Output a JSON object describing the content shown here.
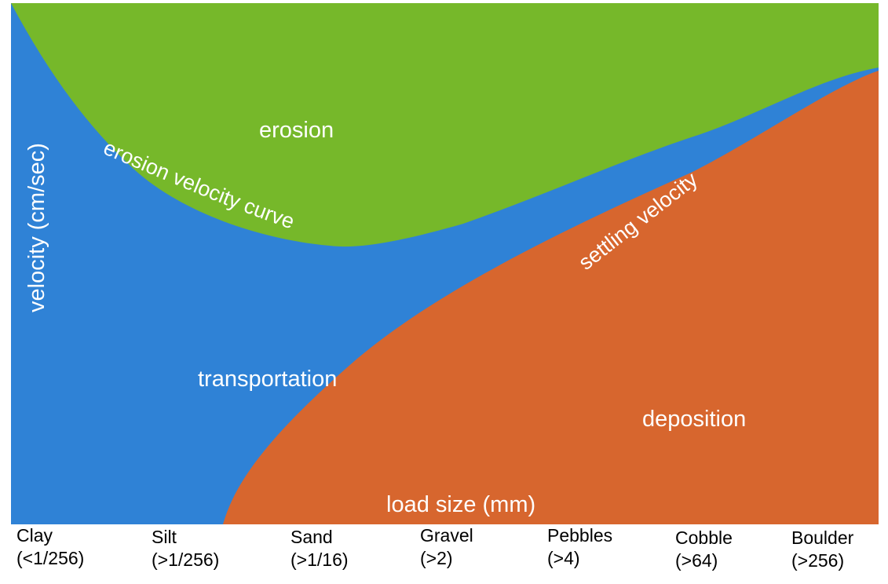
{
  "colors": {
    "erosion": "#76B82A",
    "transportation": "#2F82D6",
    "deposition": "#D7662E",
    "label_text": "#FFFFFF"
  },
  "regions": {
    "erosion": "erosion",
    "transportation": "transportation",
    "deposition": "deposition"
  },
  "curves": {
    "erosion_curve": "erosion velocity  curve",
    "settling_curve": "settling velocity"
  },
  "axes": {
    "y_label": "velocity (cm/sec)",
    "x_label": "load size (mm)"
  },
  "categories": [
    {
      "name": "Clay",
      "range": "(<1/256)"
    },
    {
      "name": "Silt",
      "range": "(>1/256)"
    },
    {
      "name": "Sand",
      "range": "(>1/16)"
    },
    {
      "name": "Gravel",
      "range": "(>2)"
    },
    {
      "name": "Pebbles",
      "range": "(>4)"
    },
    {
      "name": "Cobble",
      "range": "(>64)"
    },
    {
      "name": "Boulder",
      "range": "(>256)"
    }
  ]
}
